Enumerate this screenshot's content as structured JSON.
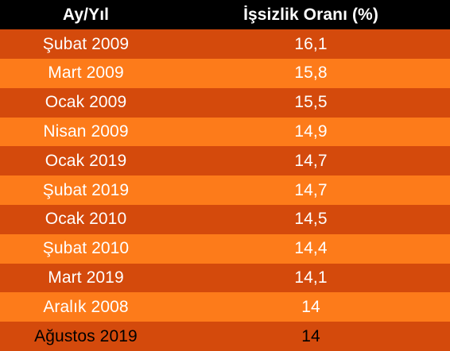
{
  "table": {
    "headers": [
      "Ay/Yıl",
      "İşsizlik Oranı (%)"
    ],
    "rows": [
      [
        "Şubat 2009",
        "16,1"
      ],
      [
        "Mart 2009",
        "15,8"
      ],
      [
        "Ocak 2009",
        "15,5"
      ],
      [
        "Nisan 2009",
        "14,9"
      ],
      [
        "Ocak 2019",
        "14,7"
      ],
      [
        "Şubat 2019",
        "14,7"
      ],
      [
        "Ocak 2010",
        "14,5"
      ],
      [
        "Şubat 2010",
        "14,4"
      ],
      [
        "Mart 2019",
        "14,1"
      ],
      [
        "Aralık 2008",
        "14"
      ],
      [
        "Ağustos 2019",
        "14"
      ]
    ]
  },
  "colors": {
    "header_bg": "#000000",
    "row_dark": "#d44a0c",
    "row_light": "#fd7b1a"
  }
}
